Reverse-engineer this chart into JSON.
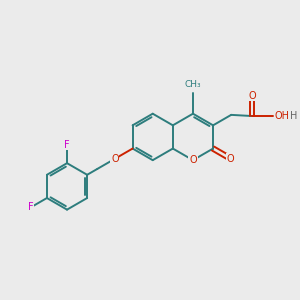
{
  "bg_color": "#ebebeb",
  "bond_color": "#2d7d7d",
  "O_color": "#cc2200",
  "F_color": "#cc00cc",
  "line_width": 1.4,
  "dbo": 0.07,
  "figsize": [
    3.0,
    3.0
  ],
  "dpi": 100,
  "xlim": [
    0,
    10
  ],
  "ylim": [
    0,
    10
  ]
}
